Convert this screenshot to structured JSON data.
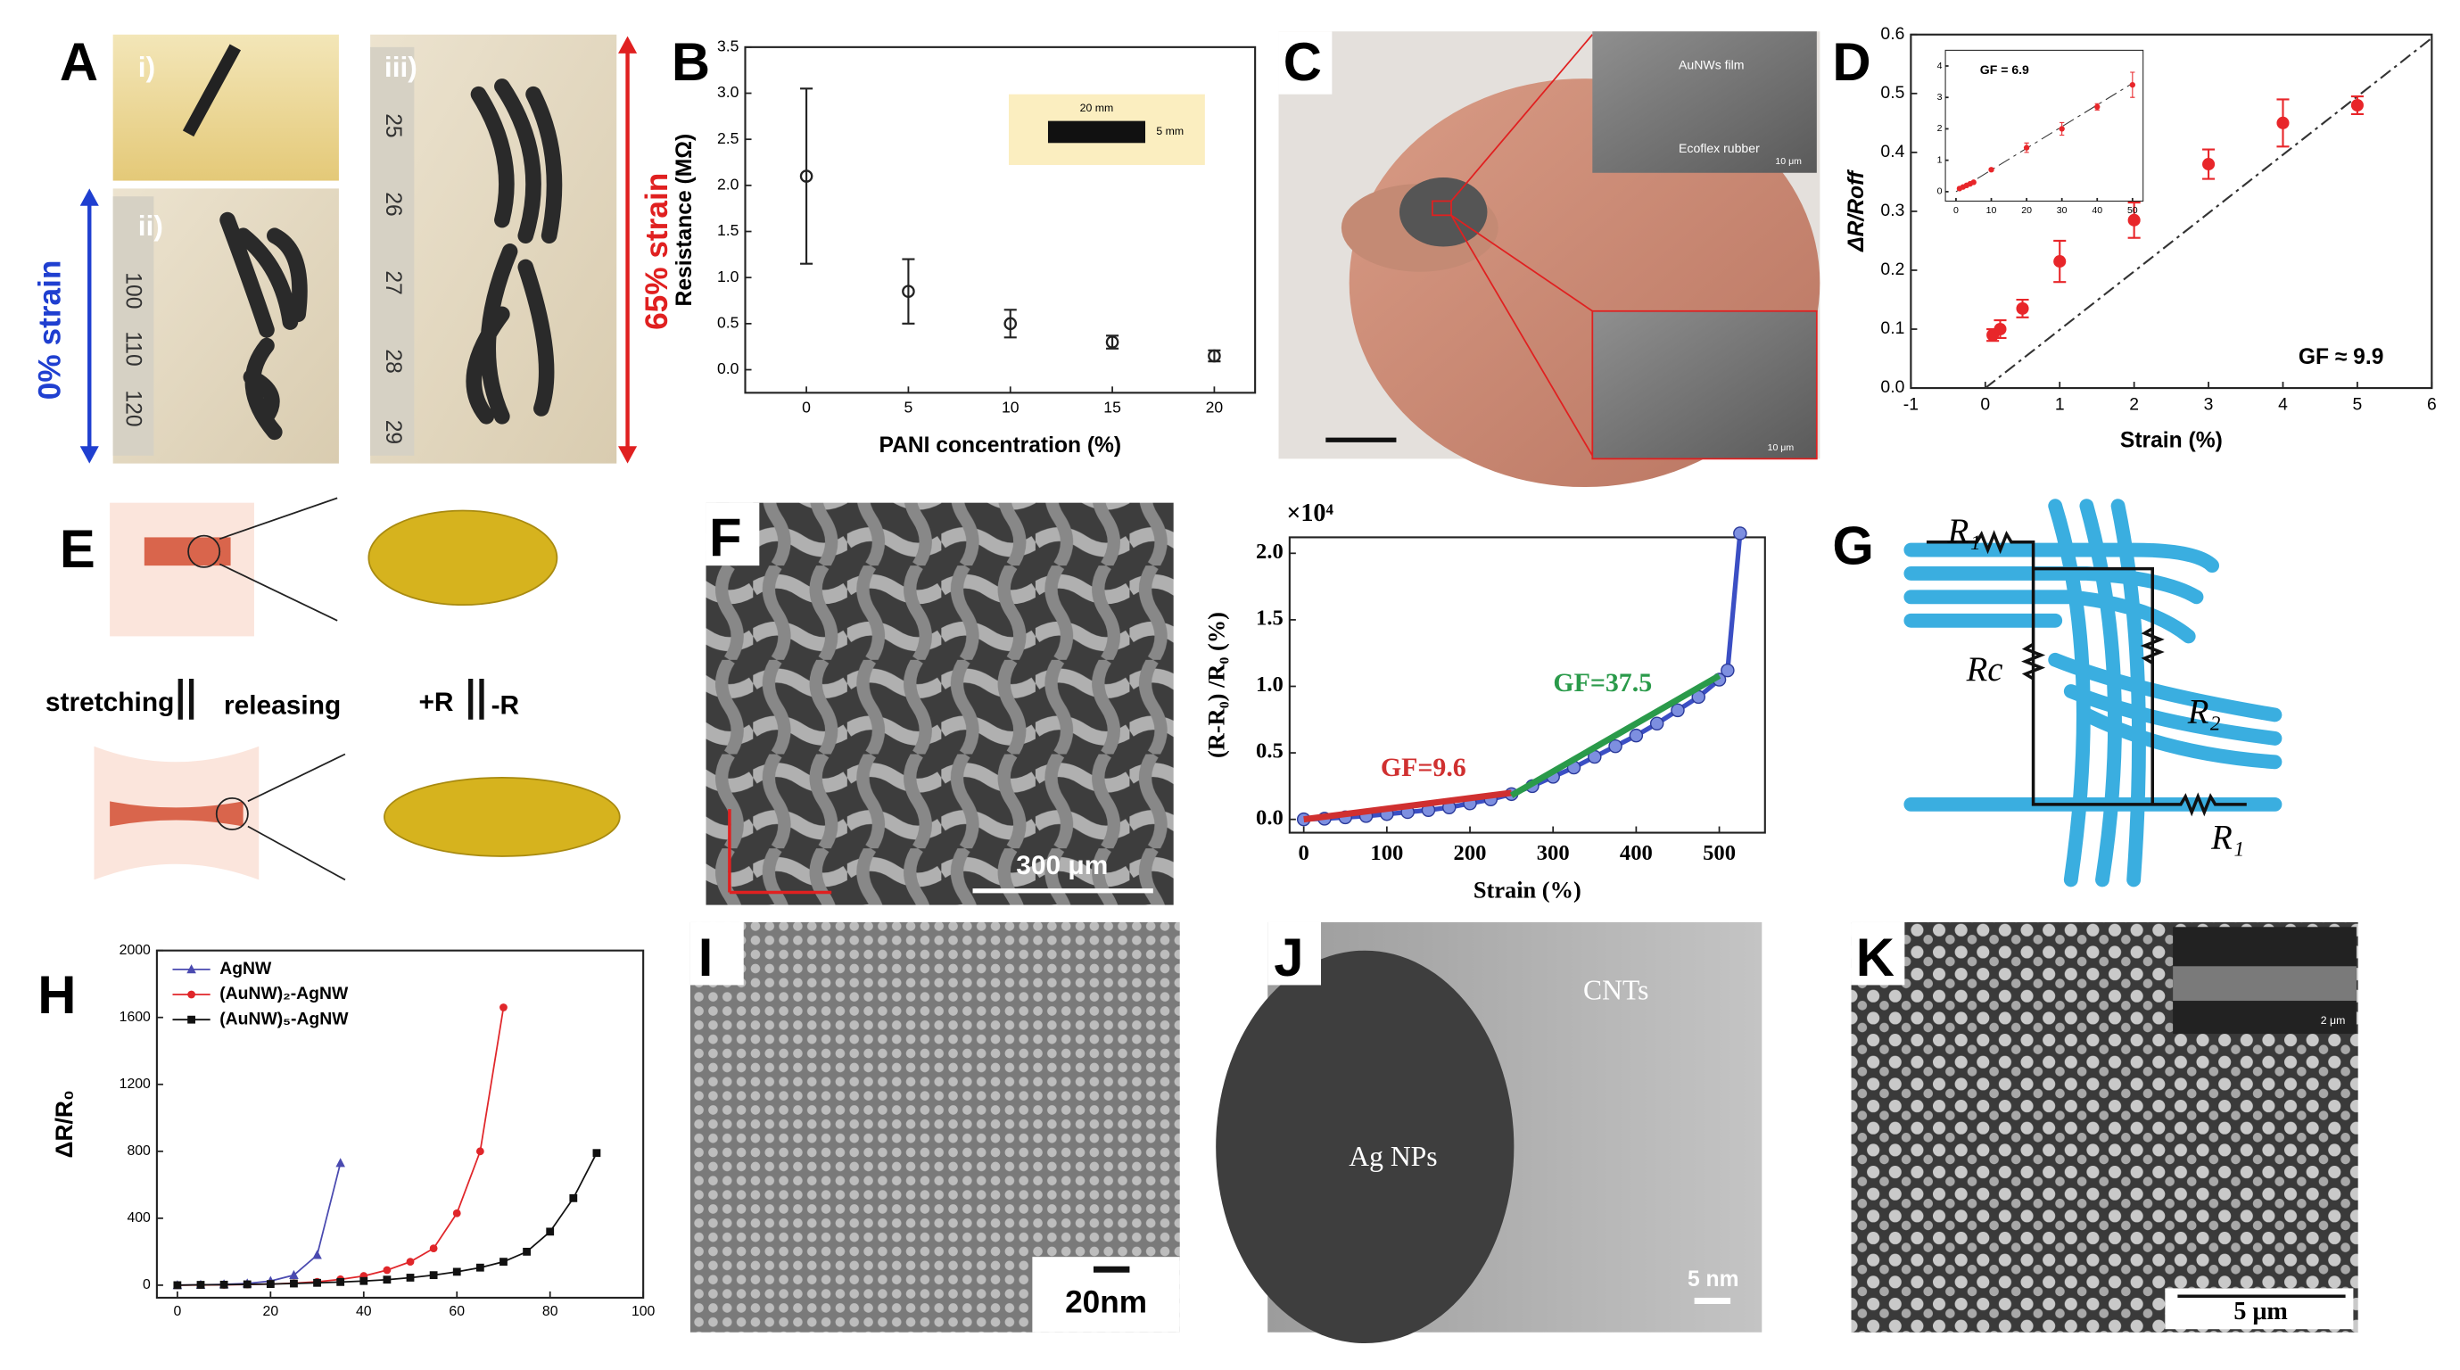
{
  "panel_labels": [
    "A",
    "B",
    "C",
    "D",
    "E",
    "F",
    "G",
    "H",
    "I",
    "J",
    "K"
  ],
  "panel_a": {
    "subpanels": [
      "i)",
      "ii)",
      "iii)"
    ],
    "left_strain": "0% strain",
    "right_strain": "65% strain",
    "ruler_left": [
      "100",
      "110",
      "120"
    ],
    "ruler_right": [
      "25",
      "26",
      "27",
      "28",
      "29"
    ]
  },
  "panel_b_inset": {
    "length": "20 mm",
    "width": "5 mm"
  },
  "panel_c": {
    "film": "AuNWs film",
    "rubber": "Ecoflex rubber",
    "scale_top": "10 μm",
    "scale_bottom": "10 μm"
  },
  "panel_e": {
    "stretching": "stretching",
    "releasing": "releasing",
    "plus": "+R",
    "minus": "-R"
  },
  "panel_f": {
    "scale": "300 μm"
  },
  "panel_g": {
    "r1_top": "R₁",
    "rc": "Rc",
    "r2": "R₂",
    "r1_bottom": "R₁"
  },
  "panel_i": {
    "scale": "20nm"
  },
  "panel_j": {
    "cnts": "CNTs",
    "ag": "Ag NPs",
    "scale": "5 nm"
  },
  "panel_k": {
    "scale": "5 μm",
    "inset_scale": "2 μm"
  },
  "chart_data": [
    {
      "type": "scatter",
      "xlabel": "PANI concentration (%)",
      "ylabel": "Resistance (MΩ)",
      "color": "#222222",
      "x": [
        0,
        5,
        10,
        15,
        20
      ],
      "values": [
        2.1,
        0.85,
        0.5,
        0.3,
        0.15
      ],
      "errors": [
        0.95,
        0.35,
        0.15,
        0.07,
        0.06
      ],
      "xlim": [
        -3,
        22
      ],
      "ylim": [
        -0.25,
        3.5
      ],
      "xticks": [
        0,
        5,
        10,
        15,
        20
      ],
      "yticks": [
        {
          "value": 0,
          "label": "0.0"
        },
        {
          "value": 0.5,
          "label": "0.5"
        },
        {
          "value": 1,
          "label": "1.0"
        },
        {
          "value": 1.5,
          "label": "1.5"
        },
        {
          "value": 2,
          "label": "2.0"
        },
        {
          "value": 2.5,
          "label": "2.5"
        },
        {
          "value": 3,
          "label": "3.0"
        },
        {
          "value": 3.5,
          "label": "3.5"
        }
      ]
    },
    {
      "type": "scatter",
      "xlabel": "Strain (%)",
      "ylabel": "ΔR/Roff",
      "annotation": "GF ≈ 9.9",
      "color": "#e8262a",
      "x": [
        0.1,
        0.2,
        0.5,
        1,
        2,
        3,
        4,
        5
      ],
      "values": [
        0.09,
        0.1,
        0.135,
        0.215,
        0.285,
        0.38,
        0.45,
        0.48
      ],
      "errors": [
        0.01,
        0.015,
        0.015,
        0.035,
        0.03,
        0.025,
        0.04,
        0.015
      ],
      "fit": {
        "x": [
          0,
          6
        ],
        "values": [
          0,
          0.594
        ]
      },
      "xlim": [
        -1,
        6
      ],
      "ylim": [
        0,
        0.6
      ],
      "xticks": [
        -1,
        0,
        1,
        2,
        3,
        4,
        5,
        6
      ],
      "yticks": [
        {
          "value": 0,
          "label": "0.0"
        },
        {
          "value": 0.1,
          "label": "0.1"
        },
        {
          "value": 0.2,
          "label": "0.2"
        },
        {
          "value": 0.3,
          "label": "0.3"
        },
        {
          "value": 0.4,
          "label": "0.4"
        },
        {
          "value": 0.5,
          "label": "0.5"
        },
        {
          "value": 0.6,
          "label": "0.6"
        }
      ]
    },
    {
      "type": "scatter",
      "annotation": "GF = 6.9",
      "color": "#e8262a",
      "x": [
        1,
        2,
        3,
        4,
        5,
        10,
        20,
        30,
        40,
        50
      ],
      "values": [
        0.1,
        0.15,
        0.2,
        0.25,
        0.3,
        0.7,
        1.4,
        2.0,
        2.7,
        3.4
      ],
      "errors": [
        0.02,
        0.02,
        0.02,
        0.02,
        0.02,
        0.05,
        0.15,
        0.2,
        0.1,
        0.4
      ],
      "fit": {
        "x": [
          0,
          50
        ],
        "values": [
          0,
          3.45
        ]
      },
      "xlim": [
        -3,
        53
      ],
      "ylim": [
        -0.3,
        4.5
      ],
      "xticks": [
        0,
        10,
        20,
        30,
        40,
        50
      ],
      "yticks": [
        0,
        1,
        2,
        3,
        4
      ]
    },
    {
      "type": "line",
      "xlabel": "Strain (%)",
      "ylabel": "(R-R₀) /R₀ (%)",
      "scale_label": "×10⁴",
      "color": "#3b4fc4",
      "x": [
        0,
        25,
        50,
        75,
        100,
        125,
        150,
        175,
        200,
        225,
        250,
        275,
        300,
        325,
        350,
        375,
        400,
        425,
        450,
        475,
        500,
        510,
        525
      ],
      "values": [
        0,
        0.005,
        0.015,
        0.025,
        0.04,
        0.055,
        0.07,
        0.09,
        0.12,
        0.15,
        0.19,
        0.25,
        0.32,
        0.39,
        0.47,
        0.55,
        0.63,
        0.72,
        0.82,
        0.92,
        1.05,
        1.12,
        2.15
      ],
      "fits": [
        {
          "label": "GF=9.6",
          "color": "#d03030",
          "x": [
            0,
            250
          ],
          "values": [
            0,
            0.2
          ]
        },
        {
          "label": "GF=37.5",
          "color": "#2a9a4a",
          "x": [
            250,
            500
          ],
          "values": [
            0.18,
            1.08
          ]
        }
      ],
      "xlim": [
        -17,
        555
      ],
      "ylim": [
        -0.1,
        2.12
      ],
      "xticks": [
        0,
        100,
        200,
        300,
        400,
        500
      ],
      "yticks": [
        {
          "value": 0,
          "label": "0.0"
        },
        {
          "value": 0.5,
          "label": "0.5"
        },
        {
          "value": 1,
          "label": "1.0"
        },
        {
          "value": 1.5,
          "label": "1.5"
        },
        {
          "value": 2,
          "label": "2.0"
        }
      ]
    },
    {
      "type": "line",
      "ylabel": "ΔR/R₀",
      "legend": "upper left",
      "series": [
        {
          "name": "AgNW",
          "color": "#4a4ab0",
          "marker": "triangle",
          "x": [
            0,
            5,
            10,
            15,
            20,
            25,
            30,
            35
          ],
          "values": [
            0,
            2,
            5,
            10,
            25,
            60,
            180,
            730
          ]
        },
        {
          "name": "(AuNW)₂-AgNW",
          "color": "#e0262a",
          "marker": "circle",
          "x": [
            0,
            5,
            10,
            15,
            20,
            25,
            30,
            35,
            40,
            45,
            50,
            55,
            60,
            65,
            70
          ],
          "values": [
            0,
            1,
            2,
            4,
            7,
            12,
            20,
            35,
            55,
            90,
            140,
            220,
            430,
            800,
            1660
          ]
        },
        {
          "name": "(AuNW)₅-AgNW",
          "color": "#111111",
          "marker": "square",
          "x": [
            0,
            5,
            10,
            15,
            20,
            25,
            30,
            35,
            40,
            45,
            50,
            55,
            60,
            65,
            70,
            75,
            80,
            85,
            90
          ],
          "values": [
            0,
            2,
            3,
            5,
            7,
            10,
            14,
            19,
            25,
            33,
            45,
            60,
            80,
            105,
            140,
            200,
            320,
            520,
            790
          ]
        }
      ],
      "xlim": [
        -4.4,
        100
      ],
      "ylim": [
        -75,
        2000
      ],
      "xticks": [
        0,
        20,
        40,
        60,
        80,
        100
      ],
      "yticks": [
        0,
        400,
        800,
        1200,
        1600,
        2000
      ]
    }
  ]
}
